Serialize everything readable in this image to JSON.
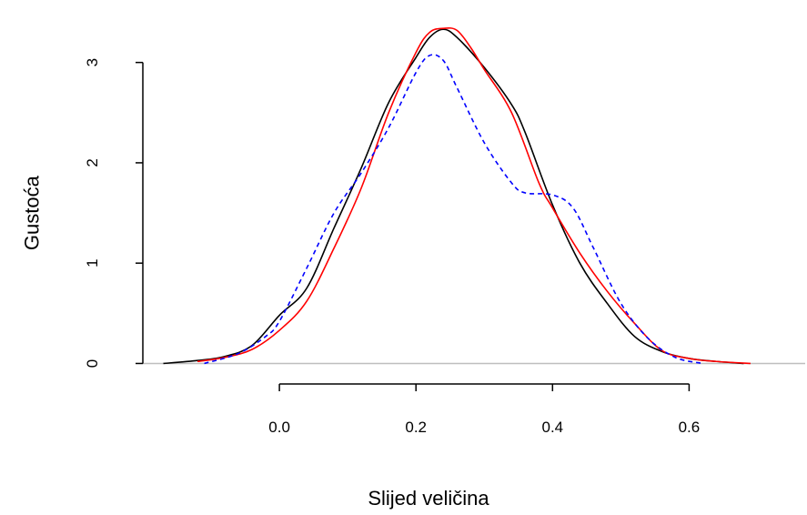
{
  "chart_data": {
    "type": "line",
    "title": "",
    "xlabel": "Slijed veličina",
    "ylabel": "Gustoća",
    "xlim": [
      -0.2,
      0.77
    ],
    "ylim": [
      -0.15,
      3.55
    ],
    "xticks": [
      0.0,
      0.2,
      0.4,
      0.6
    ],
    "xtick_labels": [
      "0.0",
      "0.2",
      "0.4",
      "0.6"
    ],
    "yticks": [
      0,
      1,
      2,
      3
    ],
    "ytick_labels": [
      "0",
      "1",
      "2",
      "3"
    ],
    "grid": false,
    "legend": "none",
    "baseline": {
      "y": 0,
      "color": "#bebebe"
    },
    "series": [
      {
        "color": "#000000",
        "dash": "solid",
        "x": [
          -0.17,
          -0.12,
          -0.08,
          -0.04,
          0.0,
          0.04,
          0.08,
          0.12,
          0.16,
          0.2,
          0.22,
          0.24,
          0.26,
          0.3,
          0.34,
          0.36,
          0.4,
          0.44,
          0.48,
          0.52,
          0.56,
          0.6,
          0.64,
          0.68
        ],
        "y": [
          0.0,
          0.03,
          0.07,
          0.18,
          0.48,
          0.75,
          1.35,
          1.95,
          2.6,
          3.05,
          3.25,
          3.33,
          3.25,
          2.95,
          2.58,
          2.3,
          1.58,
          1.0,
          0.6,
          0.27,
          0.12,
          0.05,
          0.02,
          0.0
        ]
      },
      {
        "color": "#ff0000",
        "dash": "solid",
        "x": [
          -0.12,
          -0.08,
          -0.04,
          0.0,
          0.04,
          0.08,
          0.12,
          0.16,
          0.2,
          0.22,
          0.24,
          0.26,
          0.28,
          0.3,
          0.34,
          0.38,
          0.4,
          0.44,
          0.48,
          0.52,
          0.56,
          0.6,
          0.64,
          0.69
        ],
        "y": [
          0.02,
          0.06,
          0.14,
          0.33,
          0.62,
          1.15,
          1.75,
          2.5,
          3.1,
          3.3,
          3.34,
          3.32,
          3.15,
          2.93,
          2.5,
          1.8,
          1.55,
          1.1,
          0.72,
          0.4,
          0.13,
          0.05,
          0.02,
          0.0
        ]
      },
      {
        "color": "#0000ff",
        "dash": "dashed",
        "x": [
          -0.11,
          -0.06,
          -0.02,
          0.0,
          0.04,
          0.08,
          0.12,
          0.16,
          0.2,
          0.22,
          0.24,
          0.26,
          0.3,
          0.34,
          0.36,
          0.4,
          0.43,
          0.46,
          0.5,
          0.54,
          0.58,
          0.62
        ],
        "y": [
          0.0,
          0.1,
          0.27,
          0.42,
          0.95,
          1.5,
          1.9,
          2.35,
          2.9,
          3.07,
          3.02,
          2.75,
          2.2,
          1.8,
          1.7,
          1.68,
          1.55,
          1.15,
          0.6,
          0.25,
          0.06,
          0.0
        ]
      }
    ]
  }
}
